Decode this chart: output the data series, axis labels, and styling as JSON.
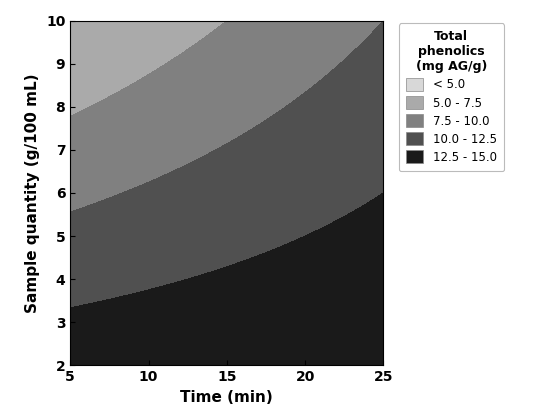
{
  "title": "",
  "xlabel": "Time (min)",
  "ylabel": "Sample quantity (g/100 mL)",
  "xlim": [
    5,
    25
  ],
  "ylim": [
    2,
    10
  ],
  "xticks": [
    5,
    10,
    15,
    20,
    25
  ],
  "yticks": [
    2,
    3,
    4,
    5,
    6,
    7,
    8,
    9,
    10
  ],
  "contour_levels": [
    0.0,
    5.0,
    7.5,
    10.0,
    12.5,
    15.0,
    20.0
  ],
  "colors": [
    "#d8d8d8",
    "#aaaaaa",
    "#808080",
    "#505050",
    "#1a1a1a"
  ],
  "legend_title": "Total\nphenolics\n(mg AG/g)",
  "legend_labels": [
    "< 5.0",
    "5.0 - 7.5",
    "7.5 - 10.0",
    "10.0 - 12.5",
    "12.5 - 15.0"
  ],
  "surface_params": {
    "a": 16.25,
    "b": 0.0,
    "c": -1.25,
    "d": 0.025
  }
}
